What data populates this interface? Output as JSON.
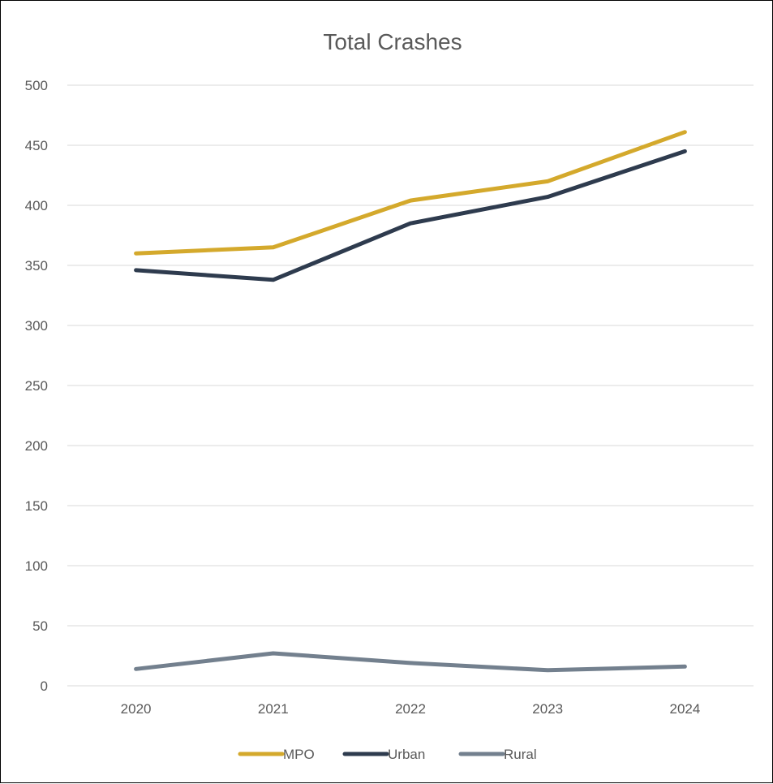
{
  "chart_data": {
    "type": "line",
    "title": "Total Crashes",
    "xlabel": "",
    "ylabel": "",
    "categories": [
      "2020",
      "2021",
      "2022",
      "2023",
      "2024"
    ],
    "ylim": [
      0,
      500
    ],
    "yticks": [
      0,
      50,
      100,
      150,
      200,
      250,
      300,
      350,
      400,
      450,
      500
    ],
    "grid": true,
    "legend_position": "bottom",
    "series": [
      {
        "name": "MPO",
        "color": "#D4A92C",
        "values": [
          360,
          365,
          404,
          420,
          461
        ]
      },
      {
        "name": "Urban",
        "color": "#2E3B4E",
        "values": [
          346,
          338,
          385,
          407,
          445
        ]
      },
      {
        "name": "Rural",
        "color": "#73808E",
        "values": [
          14,
          27,
          19,
          13,
          16
        ]
      }
    ]
  }
}
